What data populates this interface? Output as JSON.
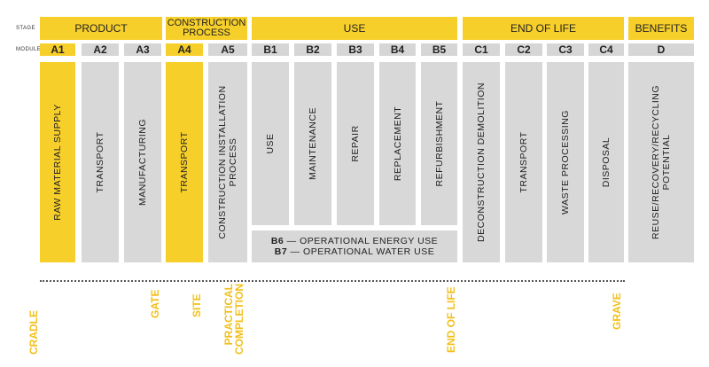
{
  "labels": {
    "stage": "STAGE",
    "module": "MODULE"
  },
  "colors": {
    "accent": "#f7cf2a",
    "panel": "#d8d8d8",
    "milestone": "#f2c01c"
  },
  "stages": [
    {
      "id": "product",
      "label": "PRODUCT"
    },
    {
      "id": "construction",
      "label": "CONSTRUCTION PROCESS"
    },
    {
      "id": "use",
      "label": "USE"
    },
    {
      "id": "end-of-life",
      "label": "END OF LIFE"
    },
    {
      "id": "benefits",
      "label": "BENEFITS"
    }
  ],
  "modules": [
    {
      "code": "A1",
      "desc": "RAW MATERIAL SUPPLY",
      "highlight": true
    },
    {
      "code": "A2",
      "desc": "TRANSPORT",
      "highlight": false
    },
    {
      "code": "A3",
      "desc": "MANUFACTURING",
      "highlight": false
    },
    {
      "code": "A4",
      "desc": "TRANSPORT",
      "highlight": true
    },
    {
      "code": "A5",
      "desc": "CONSTRUCTION INSTALLATION PROCESS",
      "highlight": false
    },
    {
      "code": "B1",
      "desc": "USE",
      "highlight": false
    },
    {
      "code": "B2",
      "desc": "MAINTENANCE",
      "highlight": false
    },
    {
      "code": "B3",
      "desc": "REPAIR",
      "highlight": false
    },
    {
      "code": "B4",
      "desc": "REPLACEMENT",
      "highlight": false
    },
    {
      "code": "B5",
      "desc": "REFURBISHMENT",
      "highlight": false
    },
    {
      "code": "C1",
      "desc": "DECONSTRUCTION DEMOLITION",
      "highlight": false
    },
    {
      "code": "C2",
      "desc": "TRANSPORT",
      "highlight": false
    },
    {
      "code": "C3",
      "desc": "WASTE PROCESSING",
      "highlight": false
    },
    {
      "code": "C4",
      "desc": "DISPOSAL",
      "highlight": false
    },
    {
      "code": "D",
      "desc": "REUSE/RECOVERY/RECYCLING POTENTIAL",
      "highlight": false
    }
  ],
  "operational": [
    {
      "code": "B6",
      "text": "— OPERATIONAL ENERGY USE"
    },
    {
      "code": "B7",
      "text": "— OPERATIONAL WATER USE"
    }
  ],
  "milestones": [
    "CRADLE",
    "GATE",
    "SITE",
    "PRACTICAL COMPLETION",
    "END OF LIFE",
    "GRAVE"
  ]
}
